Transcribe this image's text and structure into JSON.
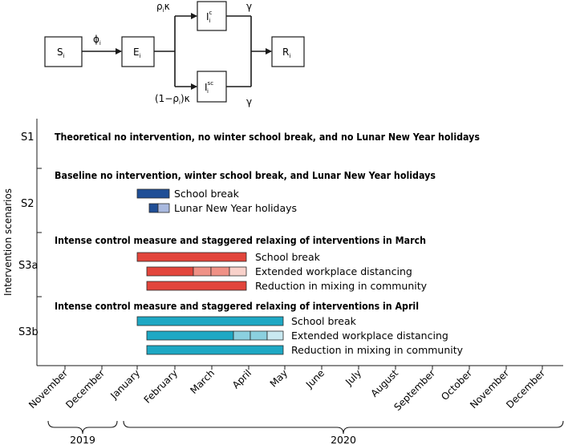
{
  "flow": {
    "nodes": {
      "s": {
        "main": "S",
        "sub": "i"
      },
      "e": {
        "main": "E",
        "sub": "i"
      },
      "ic": {
        "main": "I",
        "sup": "c",
        "sub": "i"
      },
      "isc": {
        "main": "I",
        "sup": "sc",
        "sub": "i"
      },
      "r": {
        "main": "R",
        "sub": "i"
      }
    },
    "rates": {
      "phi": "ϕ",
      "phi_sub": "i",
      "rho_kappa_pre": "ρ",
      "rho_kappa_sub": "i",
      "rho_kappa_post": "κ",
      "one_minus_pre": "(1−ρ",
      "one_minus_sub": "i",
      "one_minus_post": ")κ",
      "gamma_top": "γ",
      "gamma_bottom": "γ"
    }
  },
  "timeline": {
    "axis_label": "Intervention scenarios",
    "months": [
      "November",
      "December",
      "January",
      "February",
      "March",
      "April",
      "May",
      "June",
      "July",
      "August",
      "September",
      "October",
      "November",
      "December"
    ],
    "years": [
      "2019",
      "2020"
    ],
    "scenario_ids": [
      "S1",
      "S2",
      "S3a",
      "S3b"
    ],
    "scenario_titles": {
      "s1": "Theoretical no intervention, no winter school break, and no Lunar New Year holidays",
      "s2": "Baseline no intervention, winter school break, and Lunar New Year holidays",
      "s3a": "Intense control measure and staggered relaxing of interventions in March",
      "s3b": "Intense control measure and staggered relaxing of interventions in April"
    },
    "bar_labels": {
      "s2_school": "School break",
      "s2_lny": "Lunar New Year holidays",
      "s3a_school": "School break",
      "s3a_work": "Extended workplace distancing",
      "s3a_community": "Reduction in mixing in community",
      "s3b_school": "School break",
      "s3b_work": "Extended workplace distancing",
      "s3b_community": "Reduction in mixing in community"
    }
  },
  "colors": {
    "dark_blue": "#1f4e96",
    "light_blue": "#a9b9df",
    "red": "#e2453c",
    "salmon": "#ef9186",
    "pale_red": "#f8d1ca",
    "teal": "#1ea8c4",
    "light_teal": "#8bd0df",
    "pale_teal": "#c9e9f1"
  }
}
